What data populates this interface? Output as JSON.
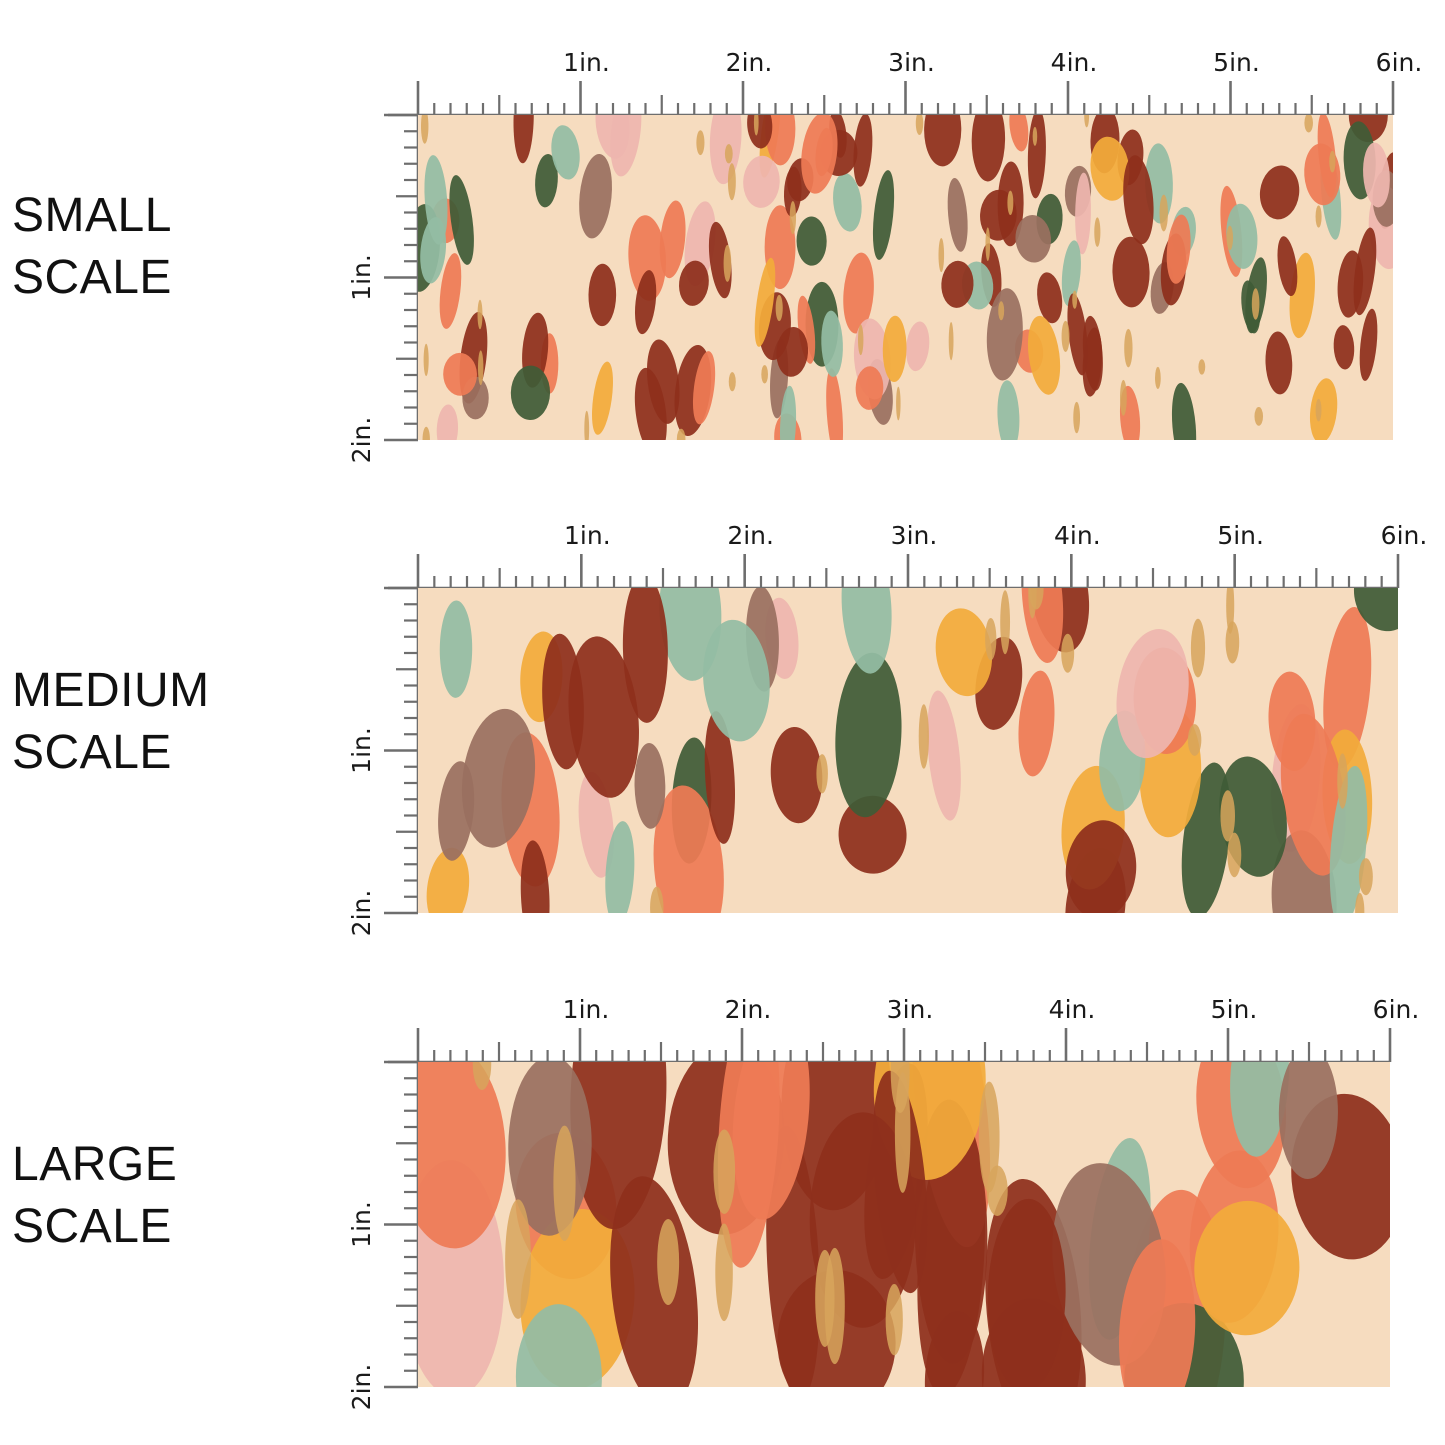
{
  "sections": [
    {
      "id": "small",
      "label_line1": "SMALL",
      "label_line2": "SCALE",
      "top_labels": [
        "1in.",
        "2in.",
        "3in.",
        "4in.",
        "5in.",
        "6in."
      ],
      "side_labels": [
        "1in.",
        "2in."
      ],
      "strokes": 120,
      "stroke_scale": 0.55
    },
    {
      "id": "medium",
      "label_line1": "MEDIUM",
      "label_line2": "SCALE",
      "top_labels": [
        "1in.",
        "2in.",
        "3in.",
        "4in.",
        "5in.",
        "6in."
      ],
      "side_labels": [
        "1in.",
        "2in."
      ],
      "strokes": 48,
      "stroke_scale": 1.0
    },
    {
      "id": "large",
      "label_line1": "LARGE",
      "label_line2": "SCALE",
      "top_labels": [
        "1in.",
        "2in.",
        "3in.",
        "4in.",
        "5in.",
        "6in."
      ],
      "side_labels": [
        "1in.",
        "2in."
      ],
      "strokes": 36,
      "stroke_scale": 1.7
    }
  ],
  "palette": {
    "background": "#f6dcbf",
    "rust": "#8e2f1c",
    "forest": "#3f5b37",
    "sage": "#93bca4",
    "coral": "#ee7b55",
    "mustard": "#f2ab3b",
    "blush": "#eeb6ae",
    "taupe": "#9a7060",
    "glitter": "#d7a45c"
  }
}
